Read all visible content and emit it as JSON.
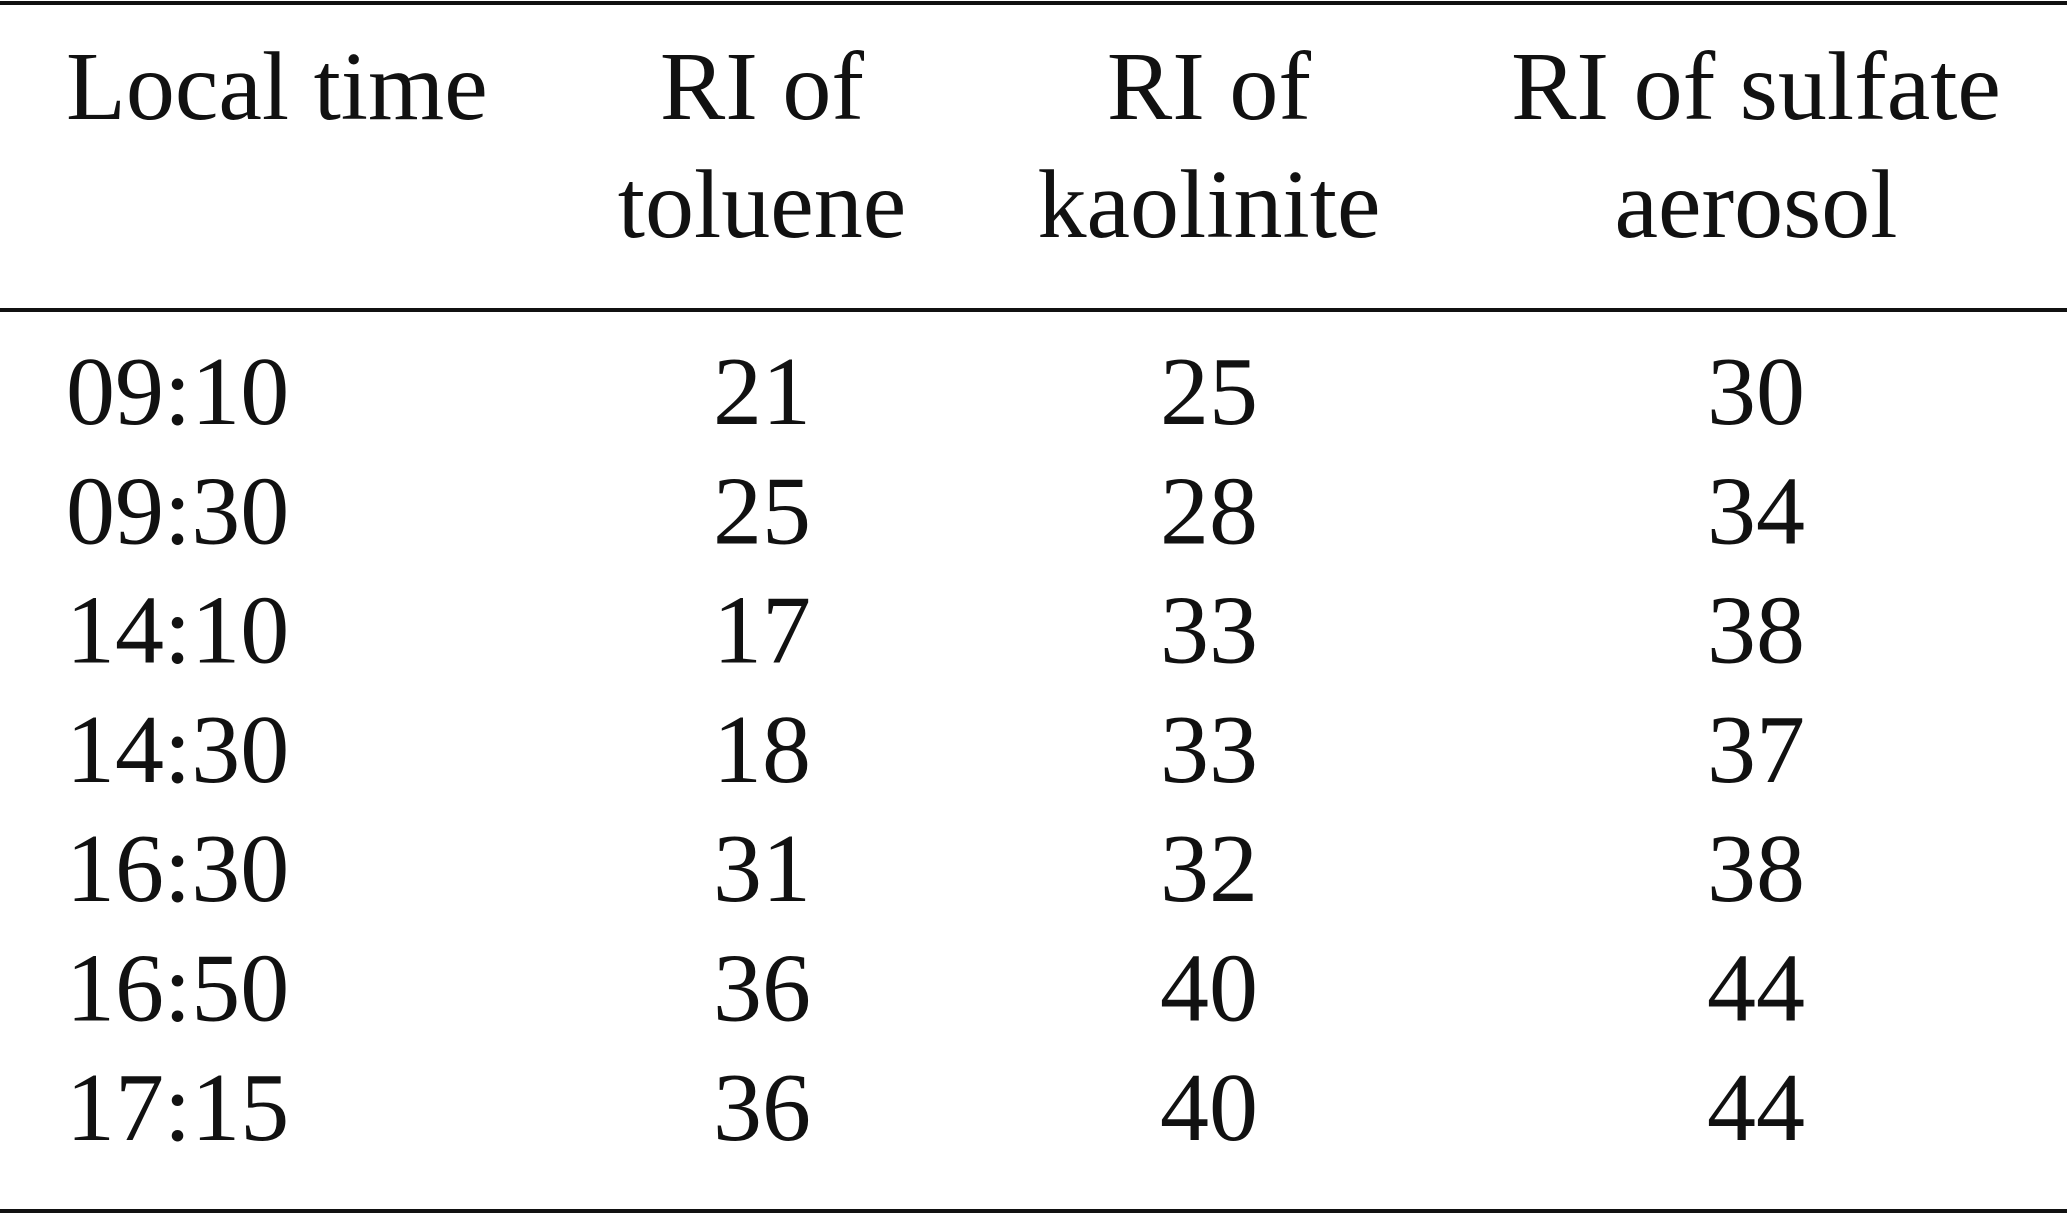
{
  "table": {
    "headers": [
      [
        "Local time"
      ],
      [
        "RI of",
        "toluene"
      ],
      [
        "RI of",
        "kaolinite"
      ],
      [
        "RI of sulfate",
        "aerosol"
      ]
    ],
    "rows": [
      [
        "09:10",
        21,
        25,
        30
      ],
      [
        "09:30",
        25,
        28,
        34
      ],
      [
        "14:10",
        17,
        33,
        38
      ],
      [
        "14:30",
        18,
        33,
        37
      ],
      [
        "16:30",
        31,
        32,
        38
      ],
      [
        "16:50",
        36,
        40,
        44
      ],
      [
        "17:15",
        36,
        40,
        44
      ]
    ]
  }
}
